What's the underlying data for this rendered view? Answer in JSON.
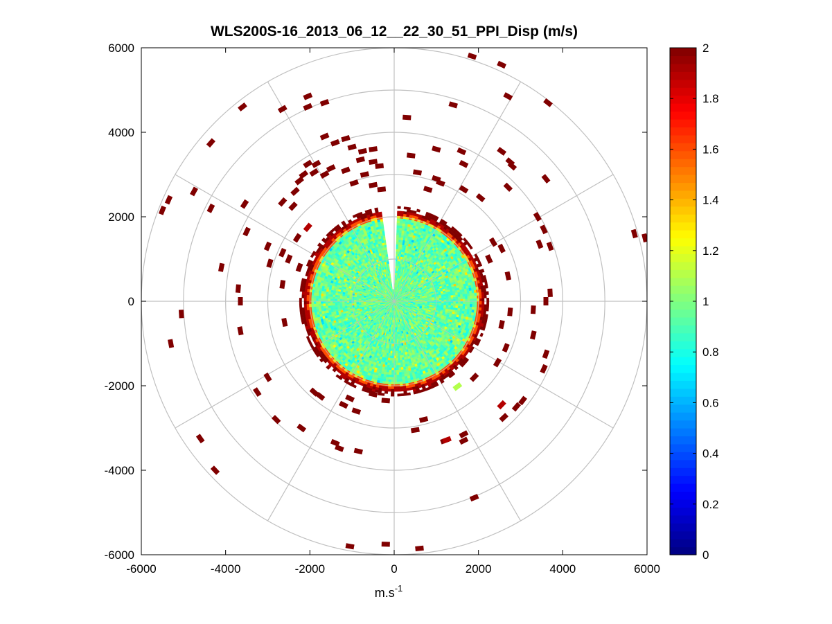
{
  "chart_data": {
    "type": "heatmap",
    "subtype": "polar-ppi-scan",
    "title": "WLS200S-16_2013_06_12__22_30_51_PPI_Disp (m/s)",
    "xlabel": "m.s",
    "xlabel_superscript": "-1",
    "ylabel": "",
    "xlim": [
      -6000,
      6000
    ],
    "ylim": [
      -6000,
      6000
    ],
    "x_ticks": [
      -6000,
      -4000,
      -2000,
      0,
      2000,
      4000,
      6000
    ],
    "y_ticks": [
      -6000,
      -4000,
      -2000,
      0,
      2000,
      4000,
      6000
    ],
    "x_tick_labels": [
      "-6000",
      "-4000",
      "-2000",
      "0",
      "2000",
      "4000",
      "6000"
    ],
    "y_tick_labels": [
      "-6000",
      "-4000",
      "-2000",
      "0",
      "2000",
      "4000",
      "6000"
    ],
    "polar_grid": {
      "rings": [
        1000,
        2000,
        3000,
        4000,
        5000,
        6000
      ],
      "spokes_deg": [
        0,
        30,
        60,
        90,
        120,
        150,
        180,
        210,
        240,
        270,
        300,
        330
      ],
      "color": "#c0c0c0"
    },
    "colorbar": {
      "colormap": "jet",
      "range": [
        0,
        2
      ],
      "ticks": [
        0,
        0.2,
        0.4,
        0.6,
        0.8,
        1,
        1.2,
        1.4,
        1.6,
        1.8,
        2
      ],
      "tick_labels": [
        "0",
        "0.2",
        "0.4",
        "0.6",
        "0.8",
        "1",
        "1.2",
        "1.4",
        "1.6",
        "1.8",
        "2"
      ]
    },
    "core_region": {
      "inner_radius": 0,
      "outer_radius": 2250,
      "typical_value": 0.95,
      "value_spread": 0.15,
      "rim_start_radius": 1950,
      "rim_values": [
        1.3,
        1.6,
        1.9,
        2.0
      ],
      "gap_azimuth_deg": [
        -8,
        2
      ]
    },
    "scatter_cells_value": 2,
    "scatter_cells": [
      [
        -2400,
        2250
      ],
      [
        -2650,
        2350
      ],
      [
        -2350,
        2600
      ],
      [
        -2250,
        2850
      ],
      [
        -2150,
        3000
      ],
      [
        -1900,
        3050
      ],
      [
        -2050,
        3250
      ],
      [
        -1650,
        3000
      ],
      [
        -1850,
        3250
      ],
      [
        -1500,
        3150
      ],
      [
        -1150,
        3100
      ],
      [
        -700,
        3000
      ],
      [
        -500,
        2750
      ],
      [
        -300,
        2650
      ],
      [
        -950,
        2800
      ],
      [
        -500,
        3300
      ],
      [
        -750,
        3550
      ],
      [
        -800,
        3350
      ],
      [
        -350,
        3200
      ],
      [
        -3550,
        2300
      ],
      [
        -4350,
        2200
      ],
      [
        -3500,
        1650
      ],
      [
        -3000,
        1300
      ],
      [
        -2950,
        900
      ],
      [
        -2650,
        1150
      ],
      [
        -2500,
        1000
      ],
      [
        -2300,
        1500
      ],
      [
        -2250,
        800
      ],
      [
        -3700,
        300
      ],
      [
        -3650,
        0
      ],
      [
        -2650,
        400
      ],
      [
        -2600,
        -500
      ],
      [
        -3650,
        -700
      ],
      [
        -3000,
        -1800
      ],
      [
        -3250,
        -2150
      ],
      [
        -2800,
        -2800
      ],
      [
        -2200,
        -3000
      ],
      [
        -1400,
        -3350
      ],
      [
        -850,
        -3550
      ],
      [
        -1300,
        -3480
      ],
      [
        -1200,
        -2450
      ],
      [
        -500,
        -2200
      ],
      [
        -1050,
        -2300
      ],
      [
        -200,
        -2350
      ],
      [
        -4600,
        -3250
      ],
      [
        -4250,
        -4000
      ],
      [
        -5300,
        -1000
      ],
      [
        -5050,
        -300
      ],
      [
        -4100,
        800
      ],
      [
        -5350,
        2400
      ],
      [
        -5500,
        2150
      ],
      [
        -4750,
        2600
      ],
      [
        -4350,
        3750
      ],
      [
        -3600,
        4600
      ],
      [
        -2650,
        4550
      ],
      [
        -500,
        3600
      ],
      [
        -1650,
        3900
      ],
      [
        -1150,
        3850
      ],
      [
        -1400,
        3750
      ],
      [
        -1000,
        3650
      ],
      [
        1000,
        3600
      ],
      [
        1600,
        3550
      ],
      [
        1650,
        3250
      ],
      [
        2550,
        3550
      ],
      [
        2800,
        3200
      ],
      [
        2700,
        2700
      ],
      [
        2050,
        2450
      ],
      [
        1650,
        2650
      ],
      [
        800,
        2650
      ],
      [
        1000,
        2900
      ],
      [
        1100,
        2800
      ],
      [
        550,
        3050
      ],
      [
        400,
        3450
      ],
      [
        300,
        4350
      ],
      [
        2700,
        4850
      ],
      [
        3650,
        4700
      ],
      [
        1850,
        5800
      ],
      [
        2550,
        5600
      ],
      [
        3600,
        2900
      ],
      [
        3400,
        2000
      ],
      [
        3550,
        1700
      ],
      [
        3700,
        1300
      ],
      [
        3450,
        1350
      ],
      [
        2350,
        1400
      ],
      [
        2550,
        1250
      ],
      [
        2700,
        600
      ],
      [
        2250,
        1000
      ],
      [
        3600,
        0
      ],
      [
        3300,
        -200
      ],
      [
        2750,
        -250
      ],
      [
        2550,
        -550
      ],
      [
        2650,
        -1100
      ],
      [
        2450,
        -1450
      ],
      [
        3300,
        -800
      ],
      [
        3600,
        -1250
      ],
      [
        3550,
        -1600
      ],
      [
        1900,
        -1800
      ],
      [
        2900,
        -2500
      ],
      [
        3050,
        -2350
      ],
      [
        2600,
        -2750
      ],
      [
        1650,
        -3150
      ],
      [
        1650,
        -3300
      ],
      [
        1200,
        -3300
      ],
      [
        500,
        -3050
      ],
      [
        700,
        -2800
      ],
      [
        -900,
        -2600
      ],
      [
        -1750,
        -2250
      ],
      [
        -1900,
        -2150
      ],
      [
        600,
        -5850
      ],
      [
        -200,
        -5750
      ],
      [
        -1050,
        -5800
      ],
      [
        1900,
        -4650
      ],
      [
        5700,
        1600
      ],
      [
        5950,
        1500
      ],
      [
        3700,
        200
      ],
      [
        -2050,
        4600
      ],
      [
        -2050,
        4850
      ],
      [
        -1650,
        4700
      ],
      [
        1400,
        4650
      ],
      [
        2750,
        3300
      ]
    ],
    "accent_cells": [
      [
        -2050,
        1750,
        1.9
      ],
      [
        2550,
        -2450,
        1.9
      ],
      [
        1500,
        -2020,
        1.1
      ],
      [
        1250,
        -3280,
        1.9
      ]
    ]
  }
}
